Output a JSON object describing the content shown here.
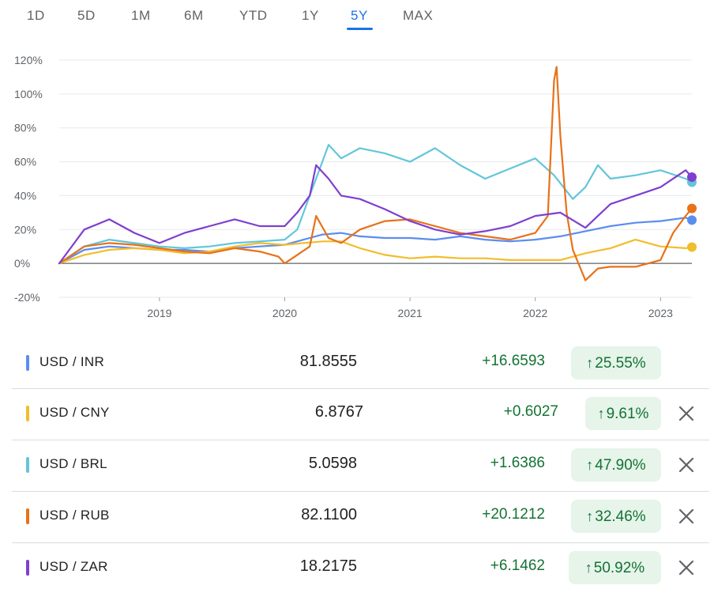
{
  "range_tabs": [
    {
      "label": "1D",
      "active": false
    },
    {
      "label": "5D",
      "active": false
    },
    {
      "label": "1M",
      "active": false
    },
    {
      "label": "6M",
      "active": false
    },
    {
      "label": "YTD",
      "active": false
    },
    {
      "label": "1Y",
      "active": false
    },
    {
      "label": "5Y",
      "active": true
    },
    {
      "label": "MAX",
      "active": false
    }
  ],
  "chart_data": {
    "type": "line",
    "title": "",
    "xlabel": "",
    "ylabel": "",
    "y_unit": "%",
    "ylim": [
      -20,
      120
    ],
    "y_ticks": [
      "120%",
      "100%",
      "80%",
      "60%",
      "40%",
      "20%",
      "0%",
      "-20%"
    ],
    "y_tick_values": [
      120,
      100,
      80,
      60,
      40,
      20,
      0,
      -20
    ],
    "xlim": [
      2018.2,
      2023.25
    ],
    "x_ticks": [
      "2019",
      "2020",
      "2021",
      "2022",
      "2023"
    ],
    "x_tick_values": [
      2019.0,
      2020.0,
      2021.0,
      2022.0,
      2023.0
    ],
    "grid": "horizontal",
    "baseline": 0,
    "series": [
      {
        "name": "USD / INR",
        "color": "#5b8def",
        "x": [
          2018.2,
          2018.4,
          2018.6,
          2018.8,
          2019.0,
          2019.2,
          2019.4,
          2019.6,
          2019.8,
          2020.0,
          2020.15,
          2020.3,
          2020.45,
          2020.6,
          2020.8,
          2021.0,
          2021.2,
          2021.4,
          2021.6,
          2021.8,
          2022.0,
          2022.2,
          2022.4,
          2022.6,
          2022.8,
          2023.0,
          2023.2,
          2023.25
        ],
        "y": [
          0,
          8,
          10,
          9,
          8,
          8,
          7,
          9,
          10,
          11,
          14,
          17,
          18,
          16,
          15,
          15,
          14,
          16,
          14,
          13,
          14,
          16,
          19,
          22,
          24,
          25,
          27,
          25.55
        ]
      },
      {
        "name": "USD / CNY",
        "color": "#f2bd2c",
        "x": [
          2018.2,
          2018.4,
          2018.6,
          2018.8,
          2019.0,
          2019.2,
          2019.4,
          2019.6,
          2019.8,
          2020.0,
          2020.15,
          2020.3,
          2020.45,
          2020.6,
          2020.8,
          2021.0,
          2021.2,
          2021.4,
          2021.6,
          2021.8,
          2022.0,
          2022.2,
          2022.4,
          2022.6,
          2022.8,
          2023.0,
          2023.2,
          2023.25
        ],
        "y": [
          0,
          5,
          8,
          9,
          8,
          6,
          7,
          10,
          12,
          11,
          12,
          13,
          13,
          9,
          5,
          3,
          4,
          3,
          3,
          2,
          2,
          2,
          6,
          9,
          14,
          10,
          9,
          9.61
        ]
      },
      {
        "name": "USD / BRL",
        "color": "#62c6da",
        "x": [
          2018.2,
          2018.4,
          2018.6,
          2018.8,
          2019.0,
          2019.2,
          2019.4,
          2019.6,
          2019.8,
          2020.0,
          2020.1,
          2020.2,
          2020.3,
          2020.35,
          2020.45,
          2020.6,
          2020.8,
          2021.0,
          2021.2,
          2021.4,
          2021.6,
          2021.8,
          2022.0,
          2022.15,
          2022.3,
          2022.4,
          2022.5,
          2022.6,
          2022.8,
          2023.0,
          2023.2,
          2023.25
        ],
        "y": [
          0,
          10,
          14,
          12,
          10,
          9,
          10,
          12,
          13,
          14,
          20,
          40,
          60,
          70,
          62,
          68,
          65,
          60,
          68,
          58,
          50,
          56,
          62,
          52,
          38,
          45,
          58,
          50,
          52,
          55,
          50,
          47.9
        ]
      },
      {
        "name": "USD / RUB",
        "color": "#e8711a",
        "x": [
          2018.2,
          2018.4,
          2018.6,
          2018.8,
          2019.0,
          2019.2,
          2019.4,
          2019.6,
          2019.8,
          2019.95,
          2020.0,
          2020.1,
          2020.2,
          2020.25,
          2020.35,
          2020.45,
          2020.6,
          2020.8,
          2021.0,
          2021.2,
          2021.4,
          2021.6,
          2021.8,
          2022.0,
          2022.1,
          2022.15,
          2022.17,
          2022.2,
          2022.25,
          2022.3,
          2022.4,
          2022.5,
          2022.6,
          2022.8,
          2023.0,
          2023.1,
          2023.2,
          2023.25
        ],
        "y": [
          0,
          10,
          12,
          11,
          9,
          7,
          6,
          9,
          7,
          4,
          0,
          5,
          10,
          28,
          15,
          12,
          20,
          25,
          26,
          22,
          18,
          16,
          14,
          18,
          28,
          108,
          116,
          75,
          30,
          8,
          -10,
          -3,
          -2,
          -2,
          2,
          18,
          28,
          32.46
        ]
      },
      {
        "name": "USD / ZAR",
        "color": "#7e3fd0",
        "x": [
          2018.2,
          2018.4,
          2018.6,
          2018.8,
          2019.0,
          2019.2,
          2019.4,
          2019.6,
          2019.8,
          2020.0,
          2020.1,
          2020.2,
          2020.25,
          2020.35,
          2020.45,
          2020.6,
          2020.8,
          2021.0,
          2021.2,
          2021.4,
          2021.6,
          2021.8,
          2022.0,
          2022.2,
          2022.4,
          2022.5,
          2022.6,
          2022.8,
          2023.0,
          2023.2,
          2023.25
        ],
        "y": [
          0,
          20,
          26,
          18,
          12,
          18,
          22,
          26,
          22,
          22,
          30,
          40,
          58,
          50,
          40,
          38,
          32,
          25,
          20,
          17,
          19,
          22,
          28,
          30,
          21,
          28,
          35,
          40,
          45,
          55,
          50.92
        ]
      }
    ]
  },
  "rows": [
    {
      "pair": "USD / INR",
      "color": "#5b8def",
      "price": "81.8555",
      "change": "+16.6593",
      "pct": "25.55%",
      "arrow": "↑",
      "removable": false
    },
    {
      "pair": "USD / CNY",
      "color": "#f2bd2c",
      "price": "6.8767",
      "change": "+0.6027",
      "pct": "9.61%",
      "arrow": "↑",
      "removable": true
    },
    {
      "pair": "USD / BRL",
      "color": "#62c6da",
      "price": "5.0598",
      "change": "+1.6386",
      "pct": "47.90%",
      "arrow": "↑",
      "removable": true
    },
    {
      "pair": "USD / RUB",
      "color": "#e8711a",
      "price": "82.1100",
      "change": "+20.1212",
      "pct": "32.46%",
      "arrow": "↑",
      "removable": true
    },
    {
      "pair": "USD / ZAR",
      "color": "#7e3fd0",
      "price": "18.2175",
      "change": "+6.1462",
      "pct": "50.92%",
      "arrow": "↑",
      "removable": true
    }
  ]
}
